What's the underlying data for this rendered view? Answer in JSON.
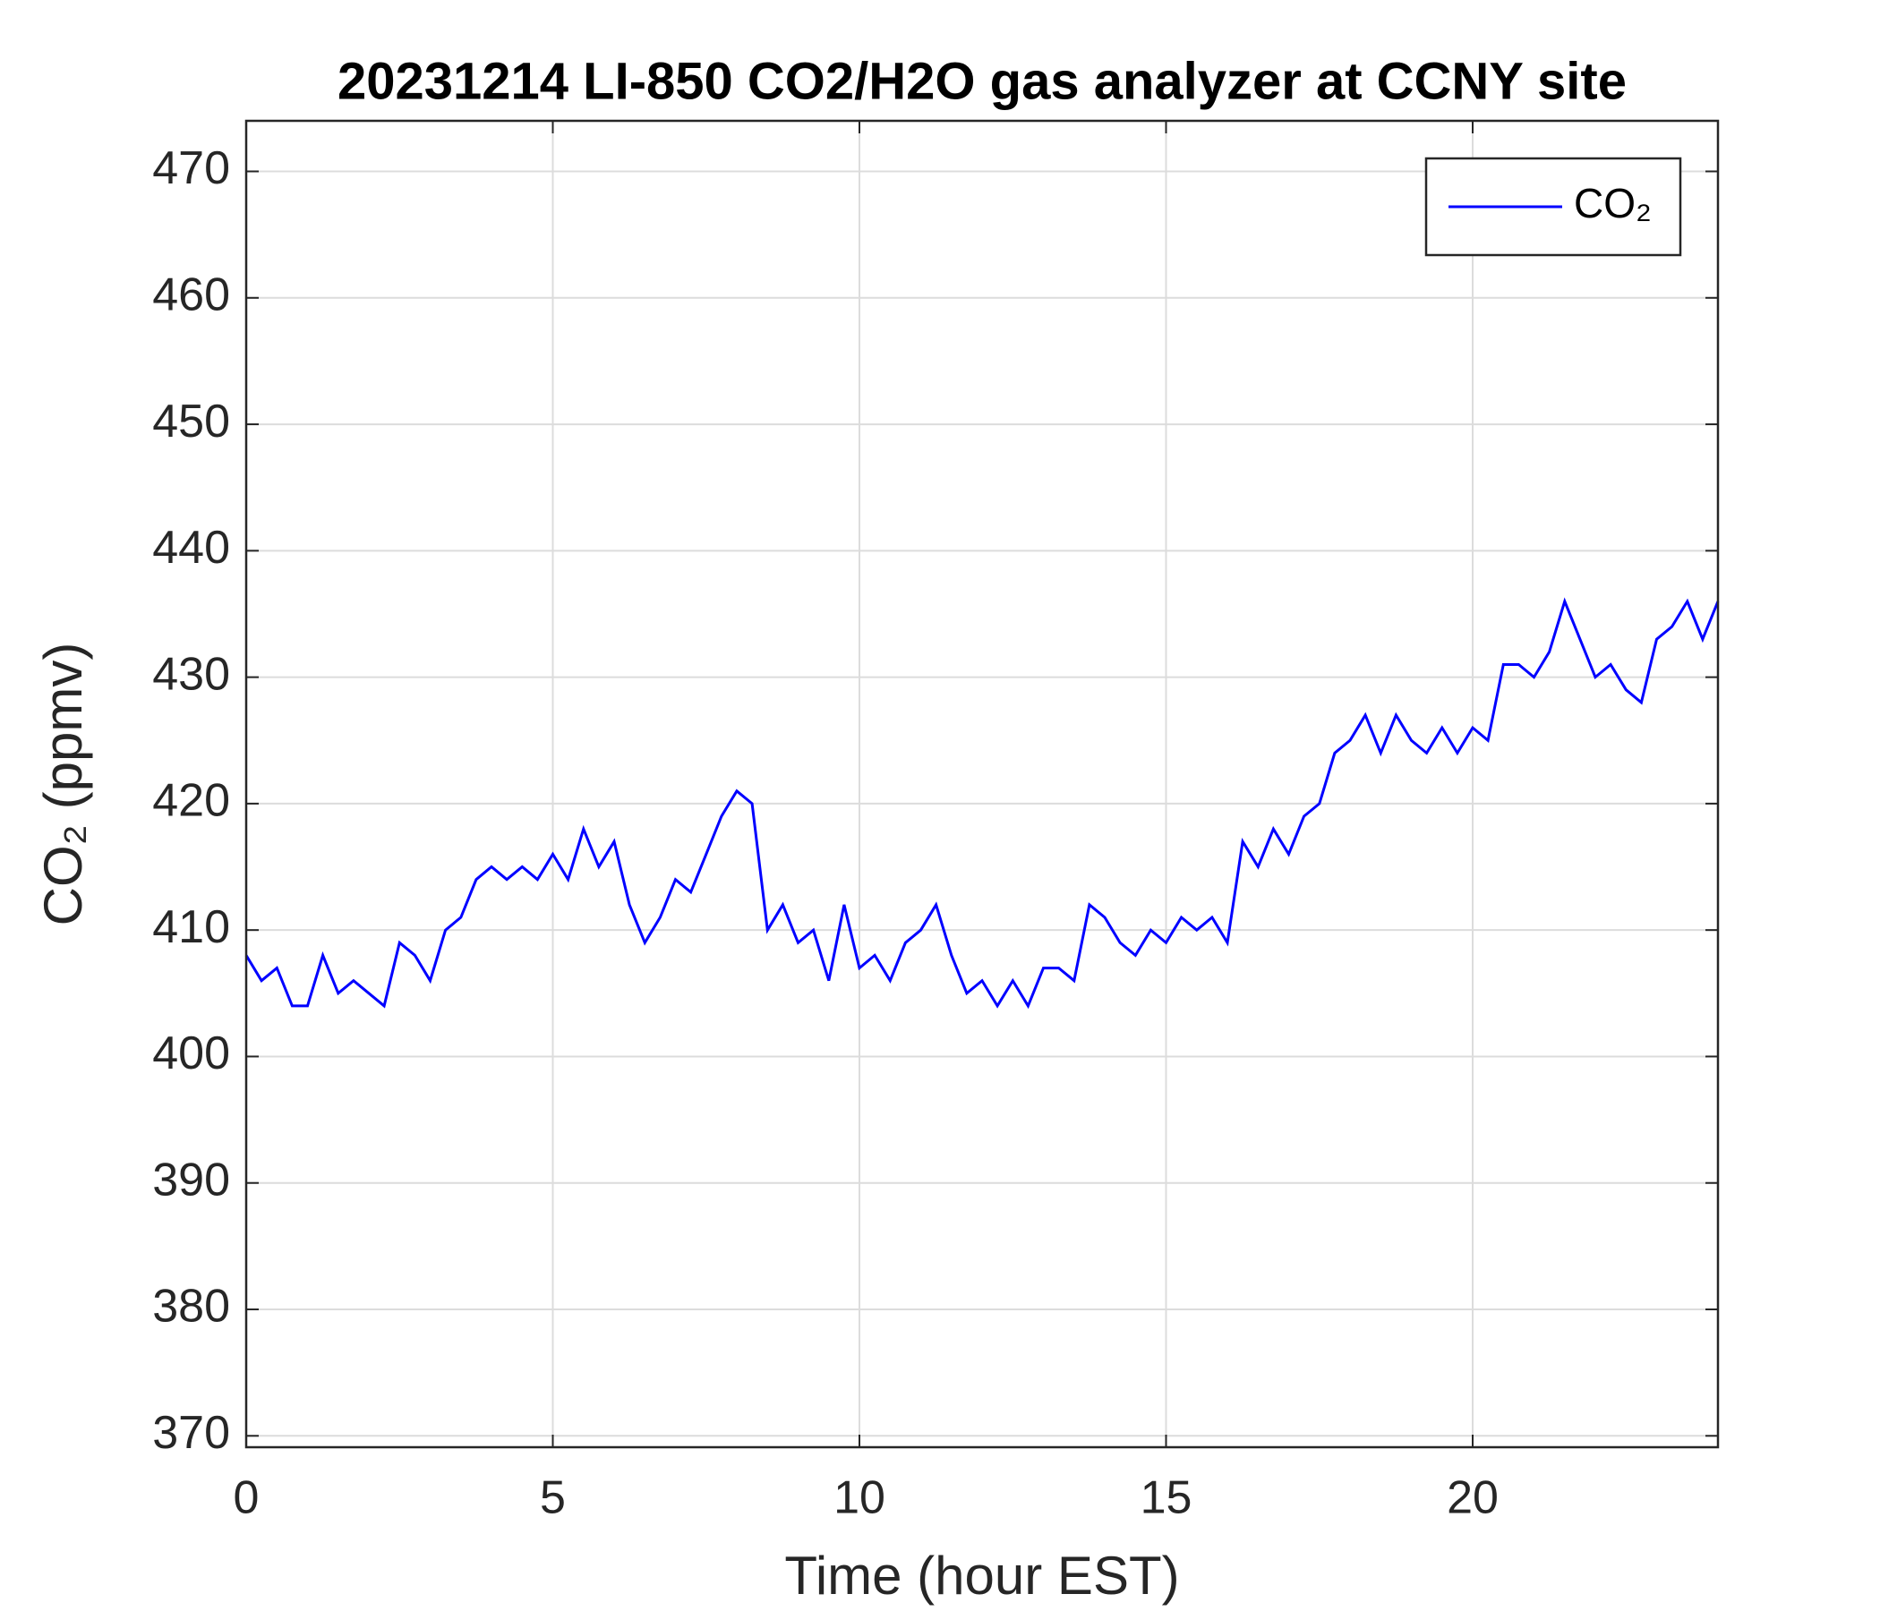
{
  "chart_data": {
    "type": "line",
    "title": "20231214 LI-850 CO2/H2O gas analyzer at CCNY site",
    "xlabel": "Time (hour EST)",
    "ylabel": "CO₂ (ppmv)",
    "x": [
      0,
      0.25,
      0.5,
      0.75,
      1,
      1.25,
      1.5,
      1.75,
      2,
      2.25,
      2.5,
      2.75,
      3,
      3.25,
      3.5,
      3.75,
      4,
      4.25,
      4.5,
      4.75,
      5,
      5.25,
      5.5,
      5.75,
      6,
      6.25,
      6.5,
      6.75,
      7,
      7.25,
      7.5,
      7.75,
      8,
      8.25,
      8.5,
      8.75,
      9,
      9.25,
      9.5,
      9.75,
      10,
      10.25,
      10.5,
      10.75,
      11,
      11.25,
      11.5,
      11.75,
      12,
      12.25,
      12.5,
      12.75,
      13,
      13.25,
      13.5,
      13.75,
      14,
      14.25,
      14.5,
      14.75,
      15,
      15.25,
      15.5,
      15.75,
      16,
      16.25,
      16.5,
      16.75,
      17,
      17.25,
      17.5,
      17.75,
      18,
      18.25,
      18.5,
      18.75,
      19,
      19.25,
      19.5,
      19.75,
      20,
      20.25,
      20.5,
      20.75,
      21,
      21.25,
      21.5,
      21.75,
      22,
      22.25,
      22.5,
      22.75,
      23,
      23.25,
      23.5,
      23.75,
      24
    ],
    "series": [
      {
        "name": "CO₂",
        "color": "#0000ff",
        "values": [
          408,
          406,
          407,
          404,
          404,
          408,
          405,
          406,
          405,
          404,
          409,
          408,
          406,
          410,
          411,
          414,
          415,
          414,
          415,
          414,
          416,
          414,
          418,
          415,
          417,
          412,
          409,
          411,
          414,
          413,
          416,
          419,
          421,
          420,
          410,
          412,
          409,
          410,
          406,
          412,
          407,
          408,
          406,
          409,
          410,
          412,
          408,
          405,
          406,
          404,
          406,
          404,
          407,
          407,
          406,
          412,
          411,
          409,
          408,
          410,
          409,
          411,
          410,
          411,
          409,
          417,
          415,
          418,
          416,
          419,
          420,
          424,
          425,
          427,
          424,
          427,
          425,
          424,
          426,
          424,
          426,
          425,
          431,
          431,
          430,
          432,
          436,
          433,
          430,
          431,
          429,
          428,
          433,
          434,
          436,
          433,
          436
        ]
      }
    ],
    "xlim": [
      0,
      24
    ],
    "xticks": [
      0,
      5,
      10,
      15,
      20
    ],
    "ylim": [
      369.1,
      474
    ],
    "yticks": [
      370,
      380,
      390,
      400,
      410,
      420,
      430,
      440,
      450,
      460,
      470
    ],
    "grid": true,
    "legend": "upper right"
  }
}
